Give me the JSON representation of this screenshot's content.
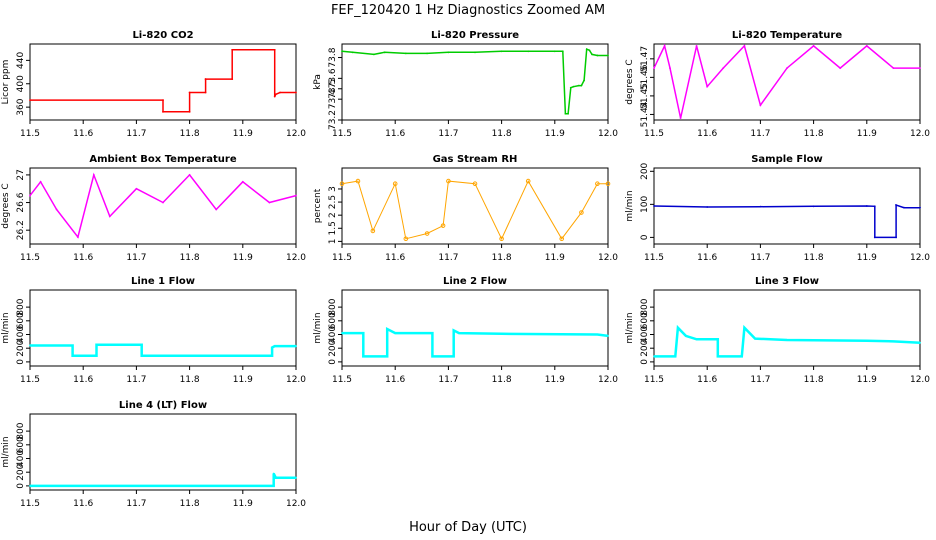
{
  "figure": {
    "title": "FEF_120420  1 Hz Diagnostics Zoomed AM",
    "xlabel": "Hour of Day (UTC)"
  },
  "colors": {
    "red": "#ff0000",
    "green": "#00cc00",
    "magenta": "#ff00ff",
    "orange": "#ffa500",
    "blue": "#0000cc",
    "cyan": "#00ffff"
  },
  "chart_data": [
    {
      "type": "line",
      "title": "Li-820 CO2",
      "ylabel": "Licor ppm",
      "color": "red",
      "xlim": [
        11.5,
        12.0
      ],
      "xticks": [
        "11.5",
        "11.6",
        "11.7",
        "11.8",
        "11.9",
        "12.0"
      ],
      "ylim": [
        338,
        468
      ],
      "yticks": [
        360,
        400,
        440
      ],
      "x": [
        11.5,
        11.75,
        11.75,
        11.8,
        11.8,
        11.83,
        11.83,
        11.88,
        11.88,
        11.96,
        11.96,
        11.962,
        11.97,
        12.0
      ],
      "y": [
        372,
        372,
        352,
        352,
        385,
        385,
        408,
        408,
        458,
        458,
        378,
        382,
        385,
        385
      ]
    },
    {
      "type": "line",
      "title": "Li-820 Pressure",
      "ylabel": "kPa",
      "color": "green",
      "xlim": [
        11.5,
        12.0
      ],
      "xticks": [
        "11.5",
        "11.6",
        "11.7",
        "11.8",
        "11.9",
        "12.0"
      ],
      "ylim": [
        73.2,
        73.93
      ],
      "yticks": [
        73.2,
        73.4,
        73.5,
        73.6,
        73.8
      ],
      "x": [
        11.5,
        11.52,
        11.56,
        11.58,
        11.62,
        11.66,
        11.7,
        11.75,
        11.8,
        11.85,
        11.9,
        11.915,
        11.92,
        11.925,
        11.93,
        11.935,
        11.945,
        11.95,
        11.955,
        11.96,
        11.965,
        11.97,
        11.98,
        12.0
      ],
      "y": [
        73.86,
        73.85,
        73.83,
        73.85,
        73.84,
        73.84,
        73.85,
        73.85,
        73.86,
        73.86,
        73.86,
        73.86,
        73.26,
        73.26,
        73.51,
        73.52,
        73.53,
        73.53,
        73.58,
        73.88,
        73.87,
        73.83,
        73.82,
        73.82
      ]
    },
    {
      "type": "line",
      "title": "Li-820 Temperature",
      "ylabel": "degrees C",
      "color": "magenta",
      "xlim": [
        11.5,
        12.0
      ],
      "xticks": [
        "11.5",
        "11.6",
        "11.7",
        "11.8",
        "11.9",
        "12.0"
      ],
      "ylim": [
        51.437,
        51.478
      ],
      "yticks": [
        51.44,
        51.45,
        51.46,
        51.47
      ],
      "x": [
        11.5,
        11.52,
        11.53,
        11.55,
        11.58,
        11.6,
        11.63,
        11.67,
        11.7,
        11.75,
        11.8,
        11.85,
        11.9,
        11.95,
        12.0
      ],
      "y": [
        51.465,
        51.477,
        51.465,
        51.438,
        51.477,
        51.455,
        51.465,
        51.477,
        51.445,
        51.465,
        51.477,
        51.465,
        51.477,
        51.465,
        51.465
      ]
    },
    {
      "type": "line",
      "title": "Ambient Box Temperature",
      "ylabel": "degrees C",
      "color": "magenta",
      "xlim": [
        11.5,
        12.0
      ],
      "xticks": [
        "11.5",
        "11.6",
        "11.7",
        "11.8",
        "11.9",
        "12.0"
      ],
      "ylim": [
        26.0,
        27.1
      ],
      "yticks": [
        26.2,
        26.6,
        27.0
      ],
      "x": [
        11.5,
        11.52,
        11.55,
        11.59,
        11.62,
        11.65,
        11.7,
        11.75,
        11.8,
        11.85,
        11.9,
        11.95,
        12.0
      ],
      "y": [
        26.7,
        26.9,
        26.5,
        26.1,
        27.0,
        26.4,
        26.8,
        26.6,
        27.0,
        26.5,
        26.9,
        26.6,
        26.7
      ]
    },
    {
      "type": "scatter",
      "title": "Gas Stream RH",
      "ylabel": "percent",
      "color": "orange",
      "xlim": [
        11.5,
        12.0
      ],
      "xticks": [
        "11.5",
        "11.6",
        "11.7",
        "11.8",
        "11.9",
        "12.0"
      ],
      "ylim": [
        0.9,
        3.8
      ],
      "yticks": [
        1.0,
        1.5,
        2.0,
        2.5,
        3.0
      ],
      "x": [
        11.5,
        11.53,
        11.558,
        11.6,
        11.62,
        11.66,
        11.69,
        11.7,
        11.75,
        11.8,
        11.85,
        11.913,
        11.95,
        11.98,
        12.0
      ],
      "y": [
        3.2,
        3.3,
        1.4,
        3.2,
        1.1,
        1.3,
        1.6,
        3.3,
        3.2,
        1.1,
        3.3,
        1.1,
        2.1,
        3.2,
        3.2
      ]
    },
    {
      "type": "line",
      "title": "Sample Flow",
      "ylabel": "ml/min",
      "color": "blue",
      "xlim": [
        11.5,
        12.0
      ],
      "xticks": [
        "11.5",
        "11.6",
        "11.7",
        "11.8",
        "11.9",
        "12.0"
      ],
      "ylim": [
        -20,
        210
      ],
      "yticks": [
        0,
        100,
        200
      ],
      "x": [
        11.5,
        11.6,
        11.7,
        11.8,
        11.9,
        11.915,
        11.915,
        11.955,
        11.955,
        11.97,
        12.0
      ],
      "y": [
        95,
        92,
        93,
        94,
        95,
        94,
        0,
        0,
        98,
        90,
        90
      ]
    },
    {
      "type": "line",
      "title": "Line 1 Flow",
      "ylabel": "ml/min",
      "color": "cyan",
      "xlim": [
        11.5,
        12.0
      ],
      "xticks": [
        "11.5",
        "11.6",
        "11.7",
        "11.8",
        "11.9",
        "12.0"
      ],
      "ylim": [
        -60,
        1050
      ],
      "yticks": [
        0,
        200,
        400,
        600,
        800
      ],
      "x": [
        11.5,
        11.58,
        11.58,
        11.625,
        11.625,
        11.71,
        11.71,
        11.955,
        11.955,
        11.96,
        12.0
      ],
      "y": [
        240,
        240,
        90,
        90,
        250,
        250,
        90,
        90,
        210,
        230,
        230
      ]
    },
    {
      "type": "line",
      "title": "Line 2 Flow",
      "ylabel": "ml/min",
      "color": "cyan",
      "xlim": [
        11.5,
        12.0
      ],
      "xticks": [
        "11.5",
        "11.6",
        "11.7",
        "11.8",
        "11.9",
        "12.0"
      ],
      "ylim": [
        -60,
        1050
      ],
      "yticks": [
        0,
        200,
        400,
        600,
        800
      ],
      "x": [
        11.5,
        11.54,
        11.54,
        11.585,
        11.585,
        11.6,
        11.67,
        11.67,
        11.71,
        11.71,
        11.72,
        11.8,
        11.98,
        12.0
      ],
      "y": [
        420,
        420,
        80,
        80,
        480,
        420,
        420,
        80,
        80,
        460,
        420,
        410,
        400,
        380
      ]
    },
    {
      "type": "line",
      "title": "Line 3 Flow",
      "ylabel": "ml/min",
      "color": "cyan",
      "xlim": [
        11.5,
        12.0
      ],
      "xticks": [
        "11.5",
        "11.6",
        "11.7",
        "11.8",
        "11.9",
        "12.0"
      ],
      "ylim": [
        -60,
        1050
      ],
      "yticks": [
        0,
        200,
        400,
        600,
        800
      ],
      "x": [
        11.5,
        11.54,
        11.545,
        11.56,
        11.58,
        11.62,
        11.62,
        11.665,
        11.67,
        11.69,
        11.75,
        11.9,
        11.95,
        12.0
      ],
      "y": [
        80,
        80,
        500,
        380,
        330,
        330,
        80,
        80,
        500,
        340,
        320,
        310,
        300,
        280
      ]
    },
    {
      "type": "line",
      "title": "Line 4 (LT) Flow",
      "ylabel": "ml/min",
      "color": "cyan",
      "xlim": [
        11.5,
        12.0
      ],
      "xticks": [
        "11.5",
        "11.6",
        "11.7",
        "11.8",
        "11.9",
        "12.0"
      ],
      "ylim": [
        -60,
        1050
      ],
      "yticks": [
        0,
        200,
        400,
        600,
        800
      ],
      "x": [
        11.5,
        11.958,
        11.958,
        11.962,
        12.0
      ],
      "y": [
        0,
        0,
        180,
        120,
        120
      ]
    }
  ]
}
